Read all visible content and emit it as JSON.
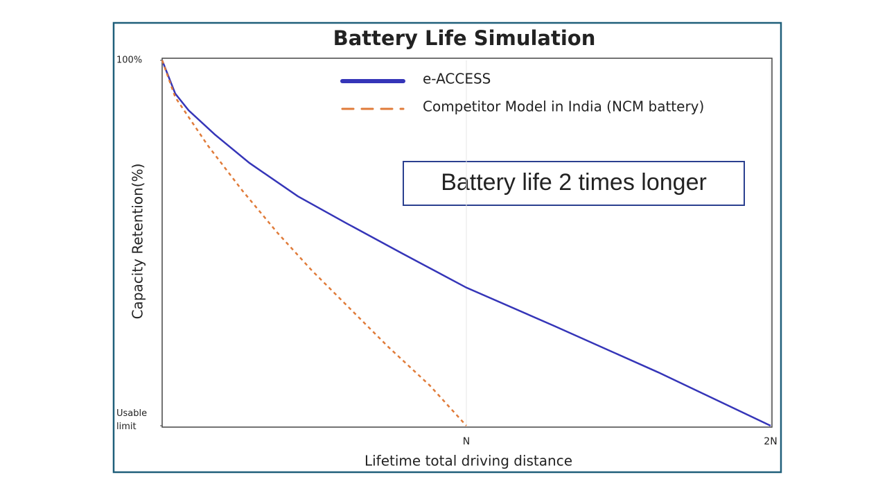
{
  "chart_data": {
    "type": "line",
    "title": "Battery Life Simulation",
    "x_label": "Lifetime total driving distance",
    "y_label": "Capacity Retention(%)",
    "annotation": "Battery life 2 times longer",
    "xlim": [
      0,
      2
    ],
    "xticks": [
      {
        "value": 1,
        "label": "N"
      },
      {
        "value": 2,
        "label": "2N"
      }
    ],
    "ylim": [
      0,
      100
    ],
    "yticks": [
      {
        "value": 0,
        "label": "Usable limit"
      },
      {
        "value": 100,
        "label": "100%"
      }
    ],
    "grid": true,
    "legend": "top",
    "series": [
      {
        "name": "e-ACCESS",
        "color": "#3535b8",
        "dash": "solid",
        "x": [
          0,
          0.043,
          0.087,
          0.173,
          0.287,
          0.446,
          0.606,
          0.788,
          1.0,
          1.289,
          1.631,
          2
        ],
        "values": [
          100,
          90.9,
          86.3,
          79.7,
          71.9,
          62.8,
          55.4,
          47.2,
          37.8,
          27.3,
          14.6,
          0
        ]
      },
      {
        "name": "Competitor Model in India (NCM battery)",
        "color": "#e07b39",
        "dash": "dashed",
        "x": [
          0,
          0.043,
          0.15,
          0.264,
          0.378,
          0.492,
          0.606,
          0.743,
          0.88,
          1.0
        ],
        "values": [
          100,
          89.9,
          76.7,
          64.3,
          52.9,
          42.5,
          33.0,
          21.6,
          11.0,
          0
        ]
      }
    ]
  }
}
